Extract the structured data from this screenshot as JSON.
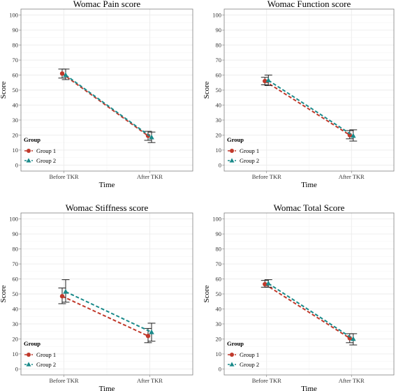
{
  "chart_data": [
    {
      "type": "line",
      "title": "Womac Pain score",
      "xlabel": "Time",
      "ylabel": "Score",
      "ylim": [
        -4,
        104
      ],
      "y_ticks": [
        0,
        10,
        20,
        30,
        40,
        50,
        60,
        70,
        80,
        90,
        100
      ],
      "categories": [
        "Before TKR",
        "After TKR"
      ],
      "legend": {
        "title": "Group",
        "position": "left-bottom"
      },
      "grid": true,
      "series": [
        {
          "name": "Group 1",
          "marker": "circle",
          "color": "#c0392b",
          "values": [
            61,
            19.5
          ],
          "lower": [
            58,
            16.5
          ],
          "upper": [
            64,
            22.5
          ]
        },
        {
          "name": "Group 2",
          "marker": "triangle",
          "color": "#1a8a8a",
          "values": [
            60,
            18.5
          ],
          "lower": [
            57,
            15
          ],
          "upper": [
            64,
            22
          ]
        }
      ]
    },
    {
      "type": "line",
      "title": "Womac Function score",
      "xlabel": "Time",
      "ylabel": "Score",
      "ylim": [
        -4,
        104
      ],
      "y_ticks": [
        0,
        10,
        20,
        30,
        40,
        50,
        60,
        70,
        80,
        90,
        100
      ],
      "categories": [
        "Before TKR",
        "After TKR"
      ],
      "legend": {
        "title": "Group",
        "position": "left-bottom"
      },
      "grid": true,
      "series": [
        {
          "name": "Group 1",
          "marker": "circle",
          "color": "#c0392b",
          "values": [
            56,
            20
          ],
          "lower": [
            53.5,
            17.5
          ],
          "upper": [
            58.5,
            23
          ]
        },
        {
          "name": "Group 2",
          "marker": "triangle",
          "color": "#1a8a8a",
          "values": [
            56.5,
            19.5
          ],
          "lower": [
            53,
            16
          ],
          "upper": [
            60,
            23.5
          ]
        }
      ]
    },
    {
      "type": "line",
      "title": "Womac Stiffness score",
      "xlabel": "Time",
      "ylabel": "Score",
      "ylim": [
        -4,
        104
      ],
      "y_ticks": [
        0,
        10,
        20,
        30,
        40,
        50,
        60,
        70,
        80,
        90,
        100
      ],
      "categories": [
        "Before TKR",
        "After TKR"
      ],
      "legend": {
        "title": "Group",
        "position": "left-bottom"
      },
      "grid": true,
      "series": [
        {
          "name": "Group 1",
          "marker": "circle",
          "color": "#c0392b",
          "values": [
            48.5,
            22
          ],
          "lower": [
            43.5,
            17.5
          ],
          "upper": [
            54,
            27
          ]
        },
        {
          "name": "Group 2",
          "marker": "triangle",
          "color": "#1a8a8a",
          "values": [
            51.5,
            24.5
          ],
          "lower": [
            44.5,
            18.5
          ],
          "upper": [
            59.5,
            30.5
          ]
        }
      ]
    },
    {
      "type": "line",
      "title": "Womac Total Score",
      "xlabel": "Time",
      "ylabel": "Score",
      "ylim": [
        -4,
        104
      ],
      "y_ticks": [
        0,
        10,
        20,
        30,
        40,
        50,
        60,
        70,
        80,
        90,
        100
      ],
      "categories": [
        "Before TKR",
        "After TKR"
      ],
      "legend": {
        "title": "Group",
        "position": "left-bottom"
      },
      "grid": true,
      "series": [
        {
          "name": "Group 1",
          "marker": "circle",
          "color": "#c0392b",
          "values": [
            56.5,
            20.5
          ],
          "lower": [
            54.5,
            17.5
          ],
          "upper": [
            59,
            23.5
          ]
        },
        {
          "name": "Group 2",
          "marker": "triangle",
          "color": "#1a8a8a",
          "values": [
            57,
            20
          ],
          "lower": [
            54.5,
            16
          ],
          "upper": [
            59.5,
            23.5
          ]
        }
      ]
    }
  ],
  "colors": {
    "group1": "#c0392b",
    "group2": "#1a8a8a",
    "grid_major": "#ebebeb",
    "grid_minor": "#f5f5f5",
    "panel_border": "#7f7f7f"
  }
}
